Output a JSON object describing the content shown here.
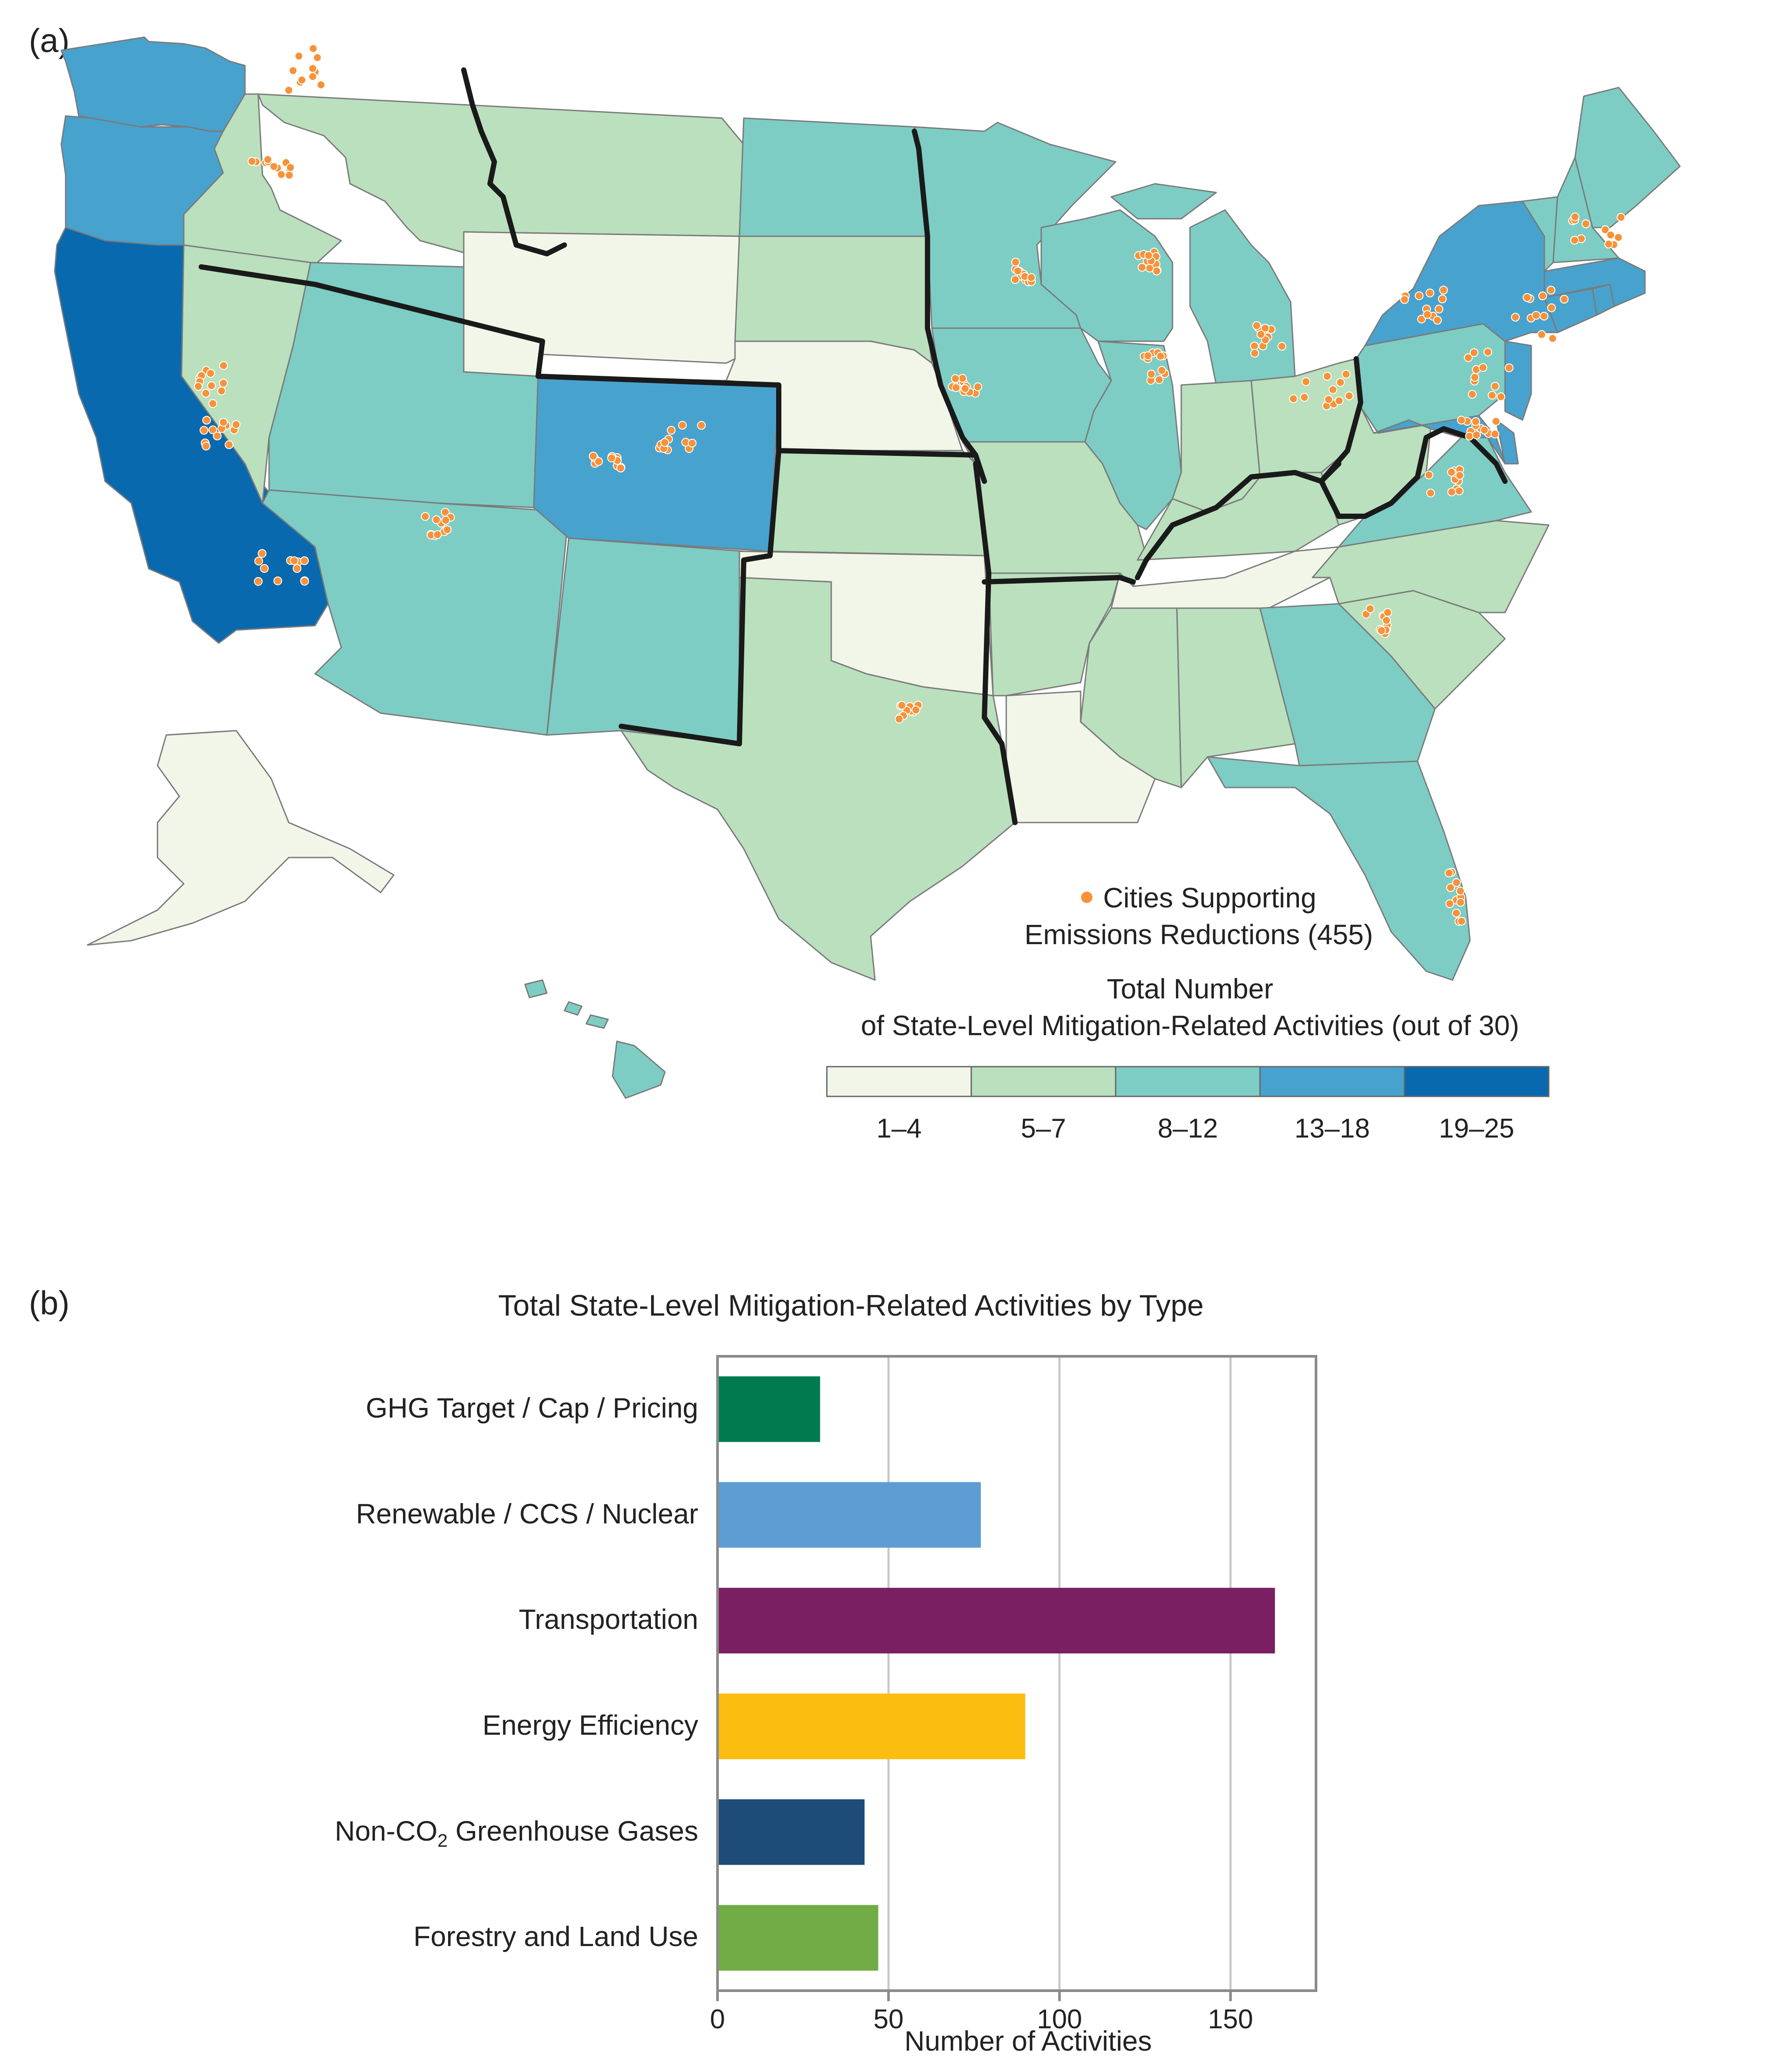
{
  "panel_a": {
    "label": "(a)",
    "dot_legend": {
      "color": "#F7923A",
      "line1": "Cities Supporting",
      "line2": "Emissions Reductions (455)"
    },
    "legend": {
      "title_line1": "Total Number",
      "title_line2": "of State-Level Mitigation-Related Activities (out of 30)",
      "bins": [
        {
          "label": "1–4",
          "color": "#F1F6E9"
        },
        {
          "label": "5–7",
          "color": "#BAE0BD"
        },
        {
          "label": "8–12",
          "color": "#7DCDC4"
        },
        {
          "label": "13–18",
          "color": "#48A2CE"
        },
        {
          "label": "19–25",
          "color": "#0969AF"
        }
      ]
    },
    "colors": {
      "border": "#7a7a7a",
      "region_border": "#1a1a1a",
      "dot": "#F7923A"
    }
  },
  "panel_b": {
    "label": "(b)",
    "chart_data": {
      "type": "bar",
      "orientation": "horizontal",
      "title": "Total State-Level Mitigation-Related Activities by Type",
      "xlabel": "Number of Activities",
      "ylabel": "",
      "xlim": [
        0,
        175
      ],
      "xticks": [
        "0",
        "50",
        "100",
        "150"
      ],
      "grid": true,
      "categories": [
        "GHG Target / Cap / Pricing",
        "Renewable / CCS / Nuclear",
        "Transportation",
        "Energy Efficiency",
        "Non-CO₂ Greenhouse Gases",
        "Forestry and Land Use"
      ],
      "values": [
        30,
        77,
        163,
        90,
        43,
        47
      ],
      "colors": [
        "#007B4F",
        "#5E9DD4",
        "#7A1F61",
        "#FBBE10",
        "#1E4C78",
        "#71AC47"
      ]
    }
  }
}
